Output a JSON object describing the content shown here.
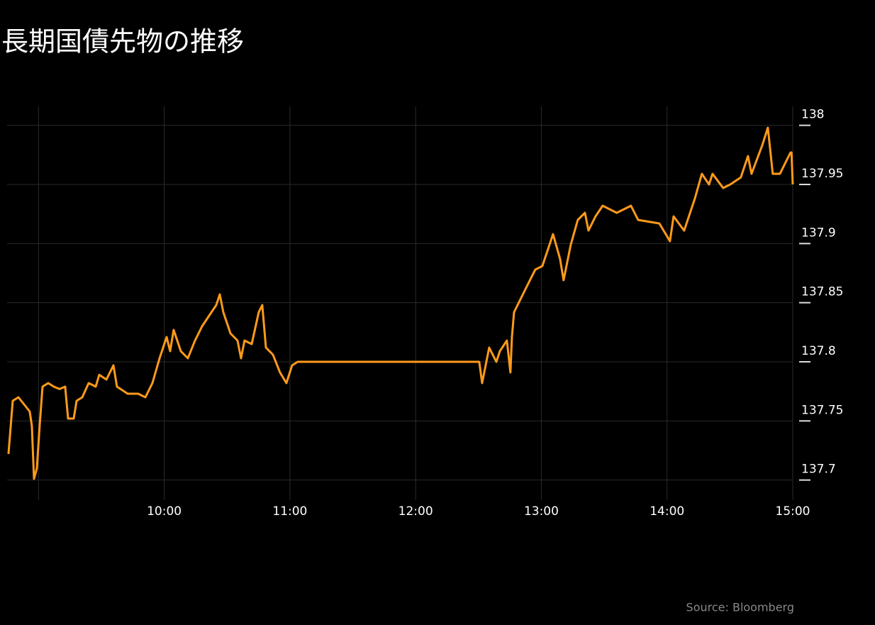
{
  "chart_data": {
    "type": "line",
    "title": "長期国債先物の推移",
    "source": "Source: Bloomberg",
    "series": [
      {
        "color": "#ff9a1a",
        "x": [
          8.761,
          8.795,
          8.84,
          8.885,
          8.93,
          8.947,
          8.964,
          8.987,
          9.009,
          9.032,
          9.077,
          9.122,
          9.167,
          9.212,
          9.235,
          9.28,
          9.303,
          9.348,
          9.399,
          9.455,
          9.483,
          9.54,
          9.596,
          9.624,
          9.709,
          9.793,
          9.85,
          9.906,
          9.963,
          10.019,
          10.047,
          10.075,
          10.132,
          10.188,
          10.245,
          10.301,
          10.357,
          10.414,
          10.442,
          10.47,
          10.527,
          10.583,
          10.611,
          10.639,
          10.696,
          10.752,
          10.78,
          10.809,
          10.865,
          10.921,
          10.972,
          11.017,
          11.062,
          12.506,
          12.529,
          12.585,
          12.642,
          12.67,
          12.726,
          12.754,
          12.766,
          12.783,
          12.839,
          12.895,
          12.952,
          13.008,
          13.065,
          13.093,
          13.149,
          13.177,
          13.234,
          13.29,
          13.347,
          13.375,
          13.431,
          13.488,
          13.6,
          13.713,
          13.77,
          13.939,
          14.023,
          14.052,
          14.136,
          14.221,
          14.277,
          14.334,
          14.362,
          14.446,
          14.503,
          14.587,
          14.644,
          14.672,
          14.757,
          14.802,
          14.841,
          14.898,
          14.982,
          14.99,
          15.0
        ],
        "values": [
          137.722,
          137.767,
          137.77,
          137.764,
          137.758,
          137.746,
          137.701,
          137.71,
          137.746,
          137.779,
          137.782,
          137.779,
          137.777,
          137.779,
          137.752,
          137.752,
          137.767,
          137.77,
          137.782,
          137.779,
          137.789,
          137.785,
          137.797,
          137.779,
          137.773,
          137.773,
          137.77,
          137.782,
          137.803,
          137.821,
          137.809,
          137.827,
          137.809,
          137.803,
          137.818,
          137.83,
          137.839,
          137.848,
          137.857,
          137.842,
          137.824,
          137.818,
          137.803,
          137.818,
          137.815,
          137.842,
          137.848,
          137.812,
          137.806,
          137.791,
          137.782,
          137.797,
          137.8,
          137.8,
          137.782,
          137.812,
          137.8,
          137.809,
          137.818,
          137.791,
          137.821,
          137.842,
          137.854,
          137.866,
          137.878,
          137.881,
          137.899,
          137.908,
          137.887,
          137.869,
          137.899,
          137.92,
          137.926,
          137.911,
          137.923,
          137.932,
          137.926,
          137.932,
          137.92,
          137.917,
          137.902,
          137.923,
          137.911,
          137.938,
          137.959,
          137.95,
          137.959,
          137.947,
          137.95,
          137.956,
          137.974,
          137.959,
          137.983,
          137.998,
          137.959,
          137.959,
          137.977,
          137.977,
          137.95
        ]
      }
    ],
    "xlim": [
      8.75,
      15.0
    ],
    "xticks": [
      {
        "value": 9,
        "label": null
      },
      {
        "value": 10,
        "label": "10:00"
      },
      {
        "value": 11,
        "label": "11:00"
      },
      {
        "value": 12,
        "label": "12:00"
      },
      {
        "value": 13,
        "label": "13:00"
      },
      {
        "value": 14,
        "label": "14:00"
      },
      {
        "value": 15,
        "label": "15:00"
      }
    ],
    "ylim": [
      137.686,
      138.016
    ],
    "yticks": [
      137.7,
      137.75,
      137.8,
      137.85,
      137.9,
      137.95,
      138
    ],
    "grid": true
  }
}
